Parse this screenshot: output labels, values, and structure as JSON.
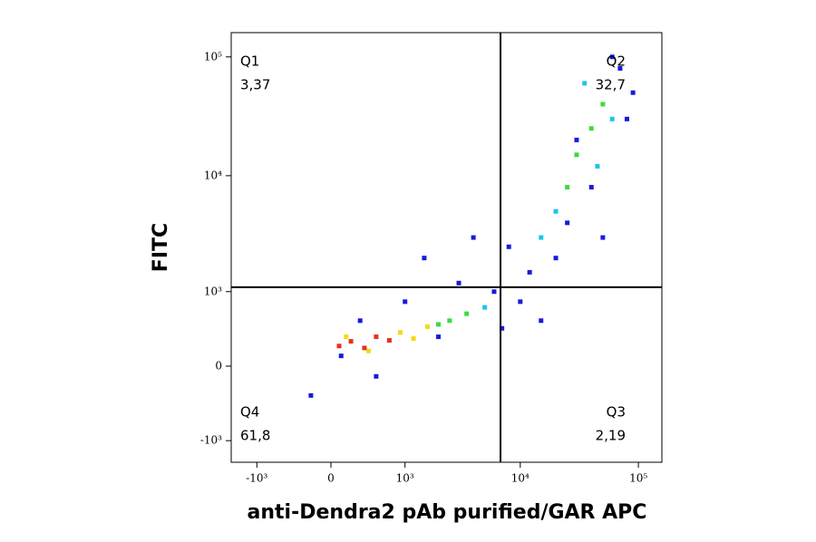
{
  "chart_data": {
    "type": "flow-density",
    "x_label": "anti-Dendra2 pAb purified/GAR APC",
    "y_label": "FITC",
    "xlim": [
      -1710,
      158000
    ],
    "ylim": [
      -1570,
      160000
    ],
    "xticks": [
      {
        "value": -1000,
        "label": "-10³"
      },
      0,
      {
        "value": 1000,
        "label": "10³"
      },
      {
        "value": 10000,
        "label": "10⁴"
      },
      {
        "value": 100000,
        "label": "10⁵"
      }
    ],
    "yticks": [
      {
        "value": -1000,
        "label": "-10³"
      },
      0,
      {
        "value": 1000,
        "label": "10³"
      },
      {
        "value": 10000,
        "label": "10⁴"
      },
      {
        "value": 100000,
        "label": "10⁵"
      }
    ],
    "gates": {
      "x": 6800,
      "y": 1100
    },
    "quadrants": {
      "names": [
        "Q1",
        "Q2",
        "Q3",
        "Q4"
      ],
      "values": [
        3.37,
        32.7,
        2.19,
        61.8
      ],
      "value_labels": [
        "3,37",
        "32,7",
        "2,19",
        "61,8"
      ]
    },
    "series": [
      {
        "color": "#1a1adc",
        "x": [
          -200,
          300,
          1000,
          3000,
          6000,
          8000,
          12000,
          20000,
          40000,
          70000,
          90000,
          1500,
          500,
          4000,
          10000,
          60000,
          30000,
          80000,
          2000,
          7000,
          25000,
          100,
          50000,
          15000
        ],
        "y": [
          -300,
          500,
          800,
          1200,
          1000,
          2500,
          1500,
          2000,
          8000,
          80000,
          50000,
          2000,
          -100,
          3000,
          800,
          100000,
          20000,
          30000,
          300,
          400,
          4000,
          100,
          3000,
          500
        ]
      },
      {
        "color": "#19c8e6",
        "x": [
          5000,
          20000,
          35000,
          60000,
          15000,
          45000
        ],
        "y": [
          700,
          5000,
          60000,
          30000,
          3000,
          12000
        ]
      },
      {
        "color": "#3cdc3c",
        "x": [
          2000,
          2500,
          3500,
          30000,
          40000,
          50000,
          25000
        ],
        "y": [
          450,
          500,
          600,
          15000,
          25000,
          40000,
          8000
        ]
      },
      {
        "color": "#f0dc14",
        "x": [
          150,
          900,
          1200,
          1600,
          400
        ],
        "y": [
          300,
          350,
          280,
          420,
          150
        ]
      },
      {
        "color": "#e6321e",
        "x": [
          80,
          200,
          350,
          500,
          700
        ],
        "y": [
          200,
          250,
          180,
          300,
          260
        ]
      }
    ]
  }
}
